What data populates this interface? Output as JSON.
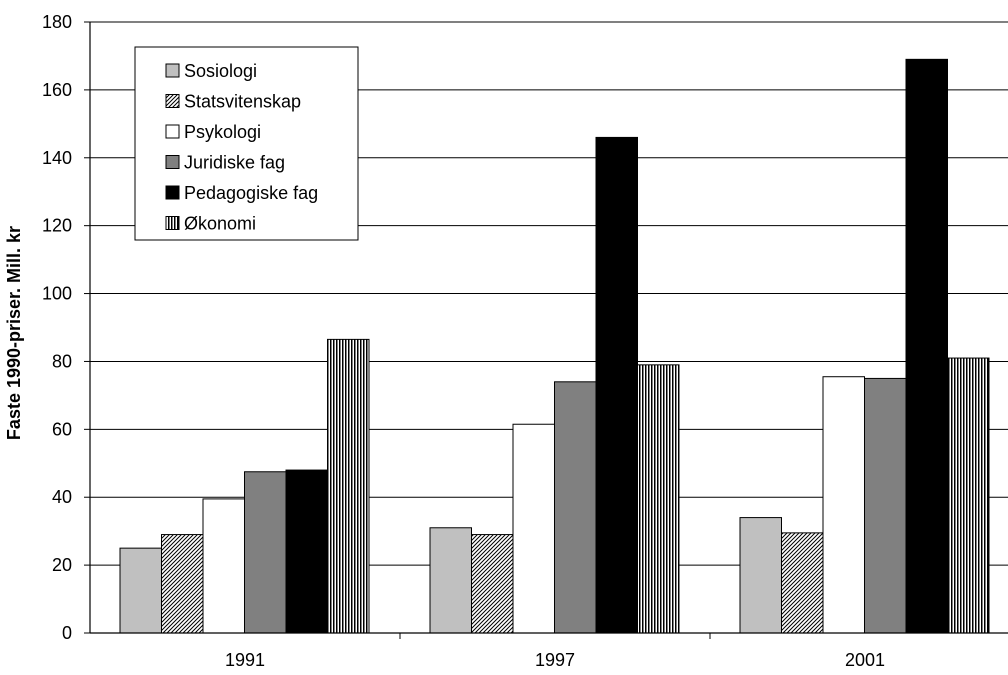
{
  "chart_data": {
    "type": "bar",
    "categories": [
      "1991",
      "1997",
      "2001"
    ],
    "series": [
      {
        "name": "Sosiologi",
        "values": [
          25,
          31,
          34
        ],
        "color": "#c0c0c0",
        "pattern": "solid"
      },
      {
        "name": "Statsvitenskap",
        "values": [
          29,
          29,
          29.5
        ],
        "color": "#ffffff",
        "pattern": "diagonal-hatch"
      },
      {
        "name": "Psykologi",
        "values": [
          39.5,
          61.5,
          75.5
        ],
        "color": "#ffffff",
        "pattern": "solid"
      },
      {
        "name": "Juridiske fag",
        "values": [
          47.5,
          74,
          75
        ],
        "color": "#808080",
        "pattern": "solid"
      },
      {
        "name": "Pedagogiske fag",
        "values": [
          48,
          146,
          169
        ],
        "color": "#000000",
        "pattern": "solid"
      },
      {
        "name": "Økonomi",
        "values": [
          86.5,
          79,
          81
        ],
        "color": "#ffffff",
        "pattern": "vertical-stripes"
      }
    ],
    "title": "",
    "xlabel": "",
    "ylabel": "Faste 1990-priser. Mill. kr",
    "ylim": [
      0,
      180
    ],
    "yticks": [
      "0",
      "20",
      "40",
      "60",
      "80",
      "100",
      "120",
      "140",
      "160",
      "180"
    ],
    "grid": true,
    "legend_position": "top-left"
  }
}
